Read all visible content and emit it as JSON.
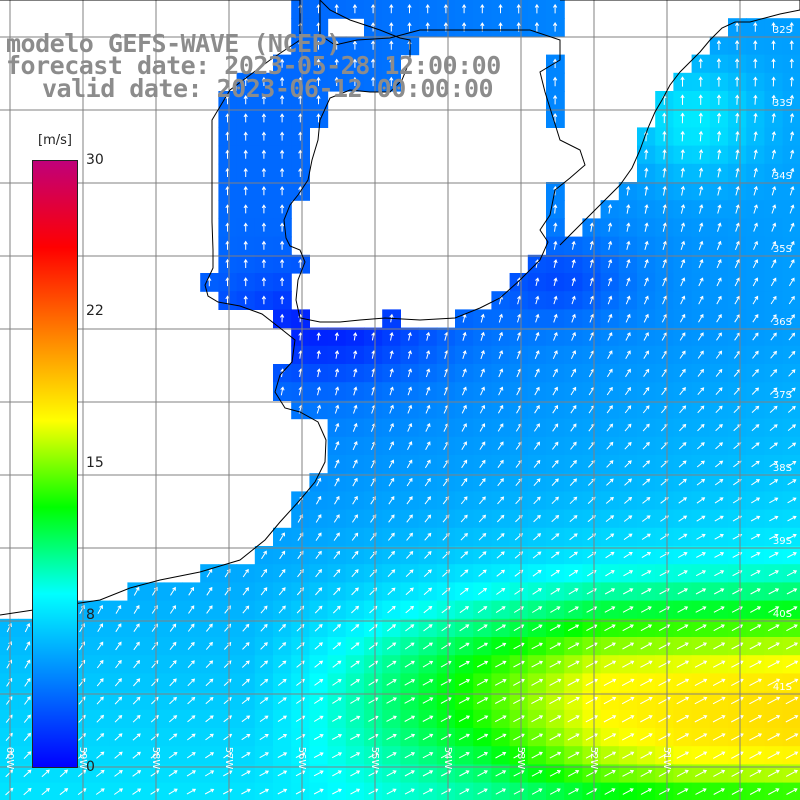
{
  "title": {
    "line1": "modelo GEFS-WAVE (NCEP)",
    "line2": "forecast date: 2023-05-28 12:00:00",
    "line3": "valid date: 2023-06-12 00:00:00"
  },
  "legend": {
    "unit": "[m/s]",
    "min": 0,
    "max": 30,
    "ticks": [
      "30",
      "22",
      "15",
      "8",
      "0"
    ],
    "colors": [
      "#0000ff",
      "#0080ff",
      "#00ffff",
      "#00ff00",
      "#ffff00",
      "#ff8000",
      "#ff0000",
      "#c0007a"
    ]
  },
  "map": {
    "lat_labels": [
      "32S",
      "33S",
      "34S",
      "35S",
      "36S",
      "37S",
      "38S",
      "39S",
      "40S",
      "41S"
    ],
    "lon_labels": [
      "60W",
      "59W",
      "58W",
      "57W",
      "56W",
      "55W",
      "54W",
      "53W",
      "52W",
      "51W"
    ],
    "background_color": "#ffffff",
    "land_color": "#ffffff",
    "grid_color": "#808080",
    "coast_color": "#000000",
    "arrow_color": "#ffffff"
  }
}
